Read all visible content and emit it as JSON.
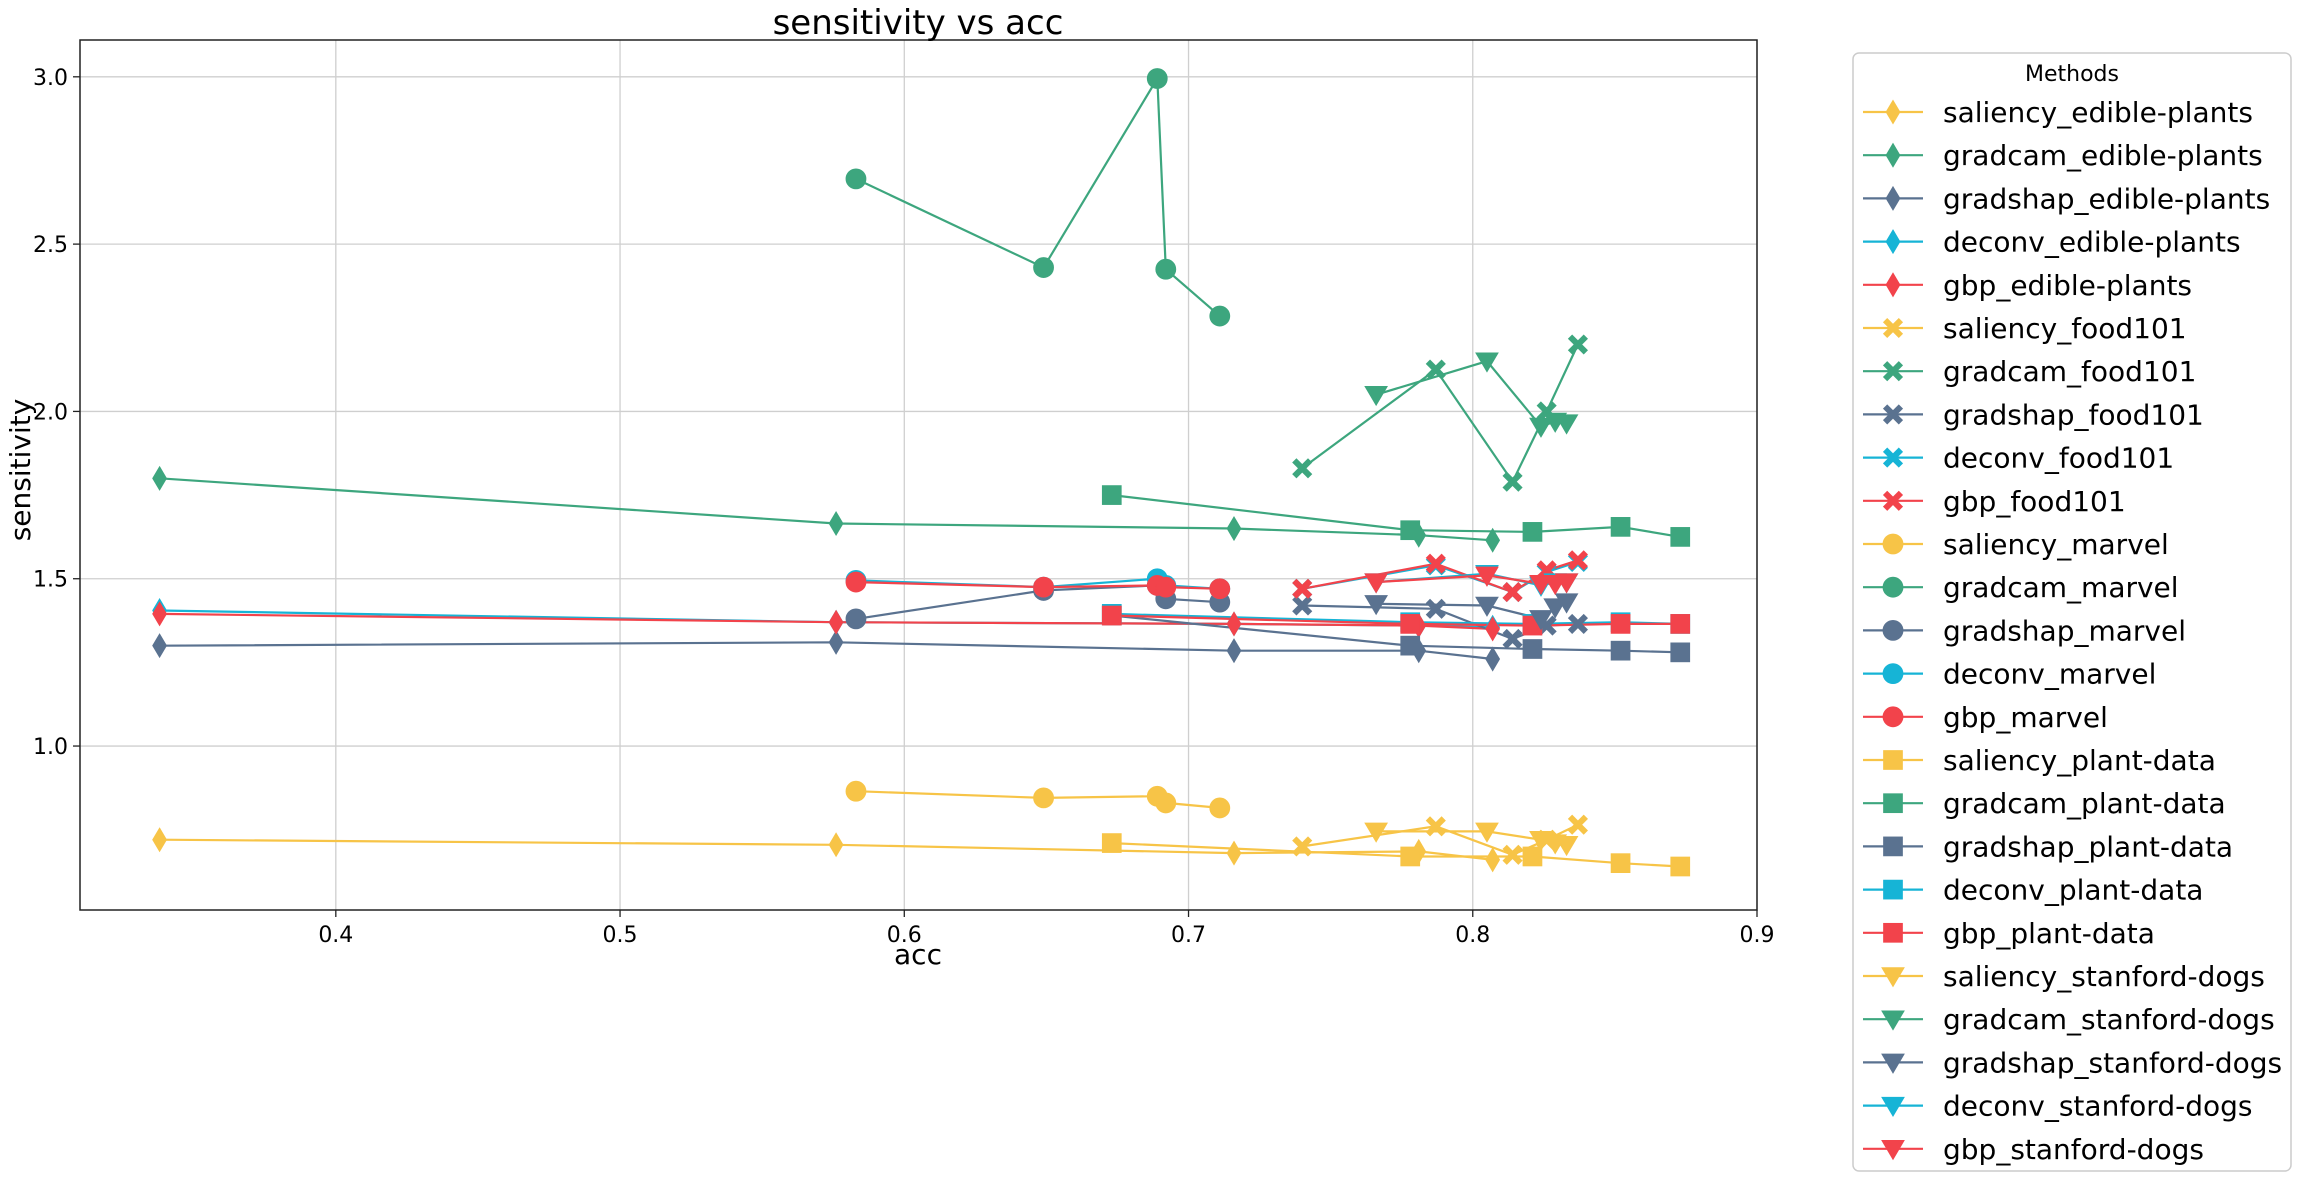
{
  "chart_data": {
    "type": "line",
    "title": "sensitivity vs acc",
    "xlabel": "acc",
    "ylabel": "sensitivity",
    "xlim": [
      0.31,
      0.9
    ],
    "ylim": [
      0.51,
      3.11
    ],
    "xticks": [
      0.4,
      0.5,
      0.6,
      0.7,
      0.8,
      0.9
    ],
    "yticks": [
      1.0,
      1.5,
      2.0,
      2.5,
      3.0
    ],
    "xtick_labels": [
      "0.4",
      "0.5",
      "0.6",
      "0.7",
      "0.8",
      "0.9"
    ],
    "ytick_labels": [
      "1.0",
      "1.5",
      "2.0",
      "2.5",
      "3.0"
    ],
    "grid": true,
    "legend": {
      "title": "Methods",
      "placement": "outside-right"
    },
    "method_colors": {
      "saliency": "#f7c447",
      "gradcam": "#3da67e",
      "gradshap": "#5a7290",
      "deconv": "#16b4d6",
      "gbp": "#f2434b"
    },
    "series": [
      {
        "name": "saliency_edible-plants",
        "method": "saliency",
        "marker": "diamond",
        "x": [
          0.338,
          0.576,
          0.716,
          0.781,
          0.807
        ],
        "y": [
          0.72,
          0.705,
          0.68,
          0.685,
          0.66
        ]
      },
      {
        "name": "gradcam_edible-plants",
        "method": "gradcam",
        "marker": "diamond",
        "x": [
          0.338,
          0.576,
          0.716,
          0.781,
          0.807
        ],
        "y": [
          1.8,
          1.665,
          1.65,
          1.63,
          1.615
        ]
      },
      {
        "name": "gradshap_edible-plants",
        "method": "gradshap",
        "marker": "diamond",
        "x": [
          0.338,
          0.576,
          0.716,
          0.781,
          0.807
        ],
        "y": [
          1.3,
          1.31,
          1.285,
          1.285,
          1.26
        ]
      },
      {
        "name": "deconv_edible-plants",
        "method": "deconv",
        "marker": "diamond",
        "x": [
          0.338,
          0.576,
          0.716,
          0.781,
          0.807
        ],
        "y": [
          1.405,
          1.37,
          1.365,
          1.36,
          1.355
        ]
      },
      {
        "name": "gbp_edible-plants",
        "method": "gbp",
        "marker": "diamond",
        "x": [
          0.338,
          0.576,
          0.716,
          0.781,
          0.807
        ],
        "y": [
          1.395,
          1.37,
          1.365,
          1.36,
          1.35
        ]
      },
      {
        "name": "saliency_food101",
        "method": "saliency",
        "marker": "x",
        "x": [
          0.74,
          0.787,
          0.814,
          0.826,
          0.837
        ],
        "y": [
          0.7,
          0.76,
          0.675,
          0.72,
          0.765
        ]
      },
      {
        "name": "gradcam_food101",
        "method": "gradcam",
        "marker": "x",
        "x": [
          0.74,
          0.787,
          0.814,
          0.826,
          0.837
        ],
        "y": [
          1.83,
          2.125,
          1.79,
          2.0,
          2.2
        ]
      },
      {
        "name": "gradshap_food101",
        "method": "gradshap",
        "marker": "x",
        "x": [
          0.74,
          0.787,
          0.814,
          0.826,
          0.837
        ],
        "y": [
          1.42,
          1.41,
          1.32,
          1.36,
          1.365
        ]
      },
      {
        "name": "deconv_food101",
        "method": "deconv",
        "marker": "x",
        "x": [
          0.74,
          0.787,
          0.814,
          0.826,
          0.837
        ],
        "y": [
          1.47,
          1.54,
          1.46,
          1.52,
          1.55
        ]
      },
      {
        "name": "gbp_food101",
        "method": "gbp",
        "marker": "x",
        "x": [
          0.74,
          0.787,
          0.814,
          0.826,
          0.837
        ],
        "y": [
          1.47,
          1.545,
          1.46,
          1.525,
          1.555
        ]
      },
      {
        "name": "saliency_marvel",
        "method": "saliency",
        "marker": "circle",
        "x": [
          0.583,
          0.649,
          0.689,
          0.692,
          0.711
        ],
        "y": [
          0.865,
          0.845,
          0.85,
          0.83,
          0.815
        ]
      },
      {
        "name": "gradcam_marvel",
        "method": "gradcam",
        "marker": "circle",
        "x": [
          0.583,
          0.649,
          0.689,
          0.692,
          0.711
        ],
        "y": [
          2.695,
          2.43,
          2.995,
          2.425,
          2.285
        ]
      },
      {
        "name": "gradshap_marvel",
        "method": "gradshap",
        "marker": "circle",
        "x": [
          0.583,
          0.649,
          0.689,
          0.692,
          0.711
        ],
        "y": [
          1.38,
          1.465,
          1.48,
          1.44,
          1.43
        ]
      },
      {
        "name": "deconv_marvel",
        "method": "deconv",
        "marker": "circle",
        "x": [
          0.583,
          0.649,
          0.689,
          0.692,
          0.711
        ],
        "y": [
          1.495,
          1.475,
          1.5,
          1.48,
          1.47
        ]
      },
      {
        "name": "gbp_marvel",
        "method": "gbp",
        "marker": "circle",
        "x": [
          0.583,
          0.649,
          0.689,
          0.692,
          0.711
        ],
        "y": [
          1.49,
          1.475,
          1.48,
          1.475,
          1.47
        ]
      },
      {
        "name": "saliency_plant-data",
        "method": "saliency",
        "marker": "square",
        "x": [
          0.673,
          0.778,
          0.821,
          0.852,
          0.873
        ],
        "y": [
          0.71,
          0.67,
          0.67,
          0.65,
          0.64
        ]
      },
      {
        "name": "gradcam_plant-data",
        "method": "gradcam",
        "marker": "square",
        "x": [
          0.673,
          0.778,
          0.821,
          0.852,
          0.873
        ],
        "y": [
          1.75,
          1.645,
          1.64,
          1.655,
          1.625
        ]
      },
      {
        "name": "gradshap_plant-data",
        "method": "gradshap",
        "marker": "square",
        "x": [
          0.673,
          0.778,
          0.821,
          0.852,
          0.873
        ],
        "y": [
          1.39,
          1.3,
          1.29,
          1.285,
          1.28
        ]
      },
      {
        "name": "deconv_plant-data",
        "method": "deconv",
        "marker": "square",
        "x": [
          0.673,
          0.778,
          0.821,
          0.852,
          0.873
        ],
        "y": [
          1.395,
          1.37,
          1.365,
          1.37,
          1.365
        ]
      },
      {
        "name": "gbp_plant-data",
        "method": "gbp",
        "marker": "square",
        "x": [
          0.673,
          0.778,
          0.821,
          0.852,
          0.873
        ],
        "y": [
          1.39,
          1.365,
          1.36,
          1.365,
          1.365
        ]
      },
      {
        "name": "saliency_stanford-dogs",
        "method": "saliency",
        "marker": "triangle-down",
        "x": [
          0.766,
          0.805,
          0.824,
          0.829,
          0.833
        ],
        "y": [
          0.745,
          0.745,
          0.72,
          0.71,
          0.705
        ]
      },
      {
        "name": "gradcam_stanford-dogs",
        "method": "gradcam",
        "marker": "triangle-down",
        "x": [
          0.766,
          0.805,
          0.824,
          0.829,
          0.833
        ],
        "y": [
          2.05,
          2.15,
          1.955,
          1.97,
          1.965
        ]
      },
      {
        "name": "gradshap_stanford-dogs",
        "method": "gradshap",
        "marker": "triangle-down",
        "x": [
          0.766,
          0.805,
          0.824,
          0.829,
          0.833
        ],
        "y": [
          1.425,
          1.42,
          1.38,
          1.415,
          1.43
        ]
      },
      {
        "name": "deconv_stanford-dogs",
        "method": "deconv",
        "marker": "triangle-down",
        "x": [
          0.766,
          0.805,
          0.824,
          0.829,
          0.833
        ],
        "y": [
          1.49,
          1.515,
          1.48,
          1.49,
          1.49
        ]
      },
      {
        "name": "gbp_stanford-dogs",
        "method": "gbp",
        "marker": "triangle-down",
        "x": [
          0.766,
          0.805,
          0.824,
          0.829,
          0.833
        ],
        "y": [
          1.49,
          1.51,
          1.485,
          1.485,
          1.49
        ]
      }
    ]
  }
}
